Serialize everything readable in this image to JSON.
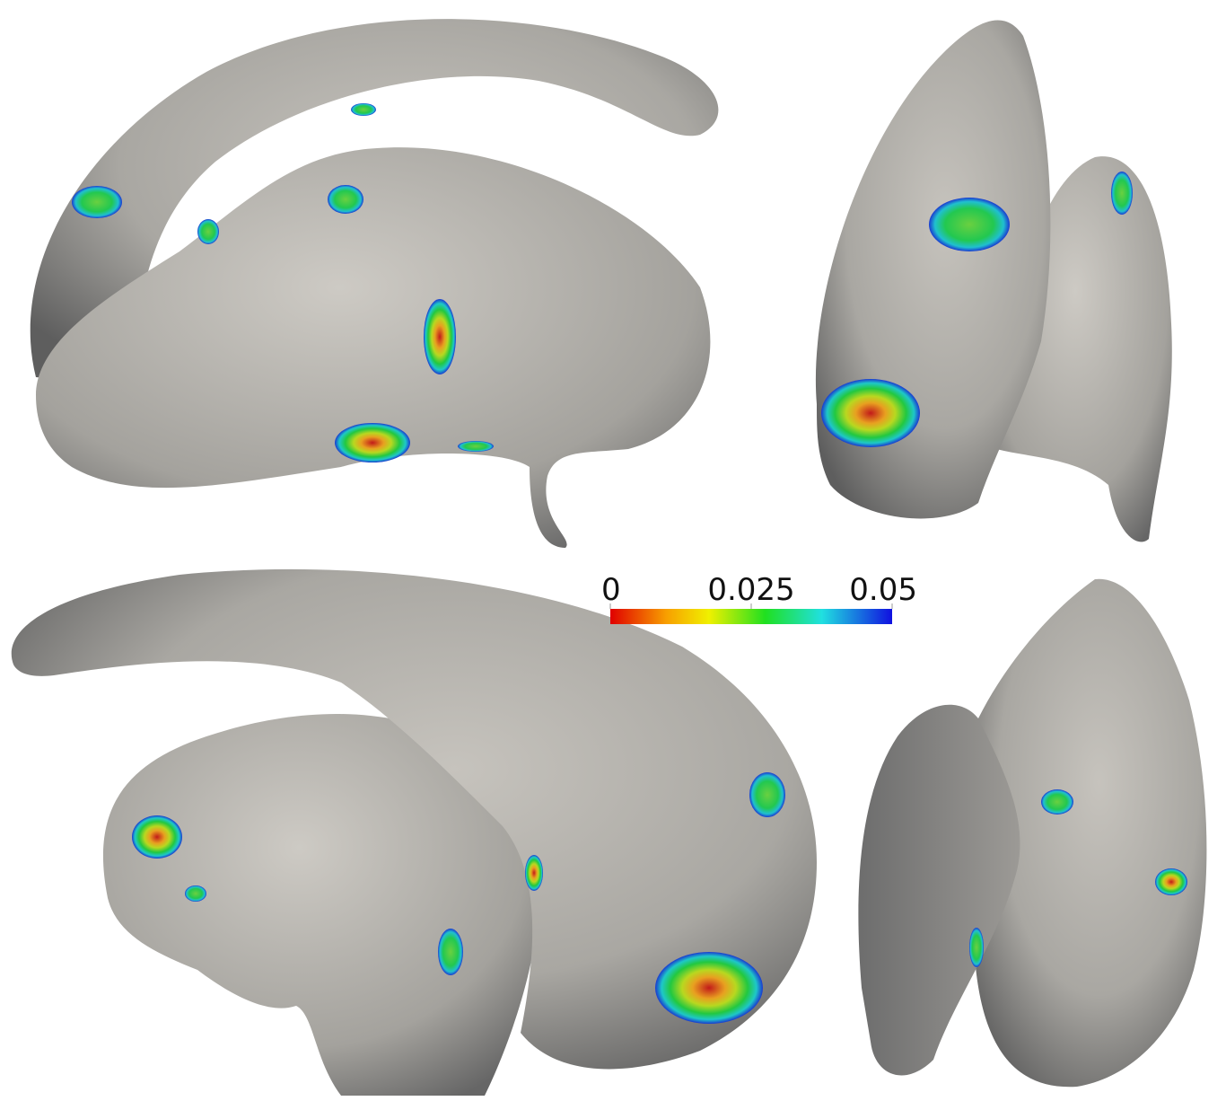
{
  "colorbar": {
    "lim": [
      0,
      0.05
    ],
    "ticks": [
      0,
      0.025,
      0.05
    ]
  }
}
